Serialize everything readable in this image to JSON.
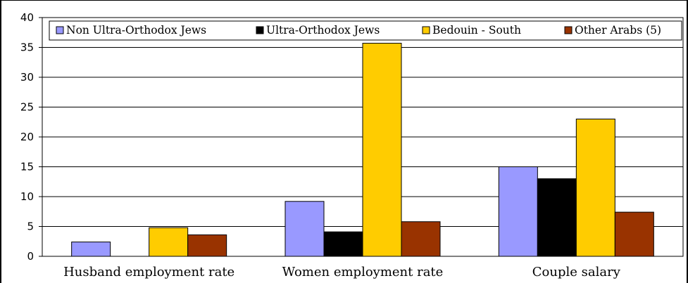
{
  "chart_data": {
    "type": "bar",
    "categories": [
      "Husband employment rate",
      "Women employment rate",
      "Couple salary"
    ],
    "series": [
      {
        "name": "Non Ultra-Orthodox Jews",
        "values": [
          2.4,
          9.2,
          15.0
        ],
        "color": "#9999ff"
      },
      {
        "name": "Ultra-Orthodox Jews",
        "values": [
          0,
          4.1,
          13.0
        ],
        "color": "#000000"
      },
      {
        "name": "Bedouin - South",
        "values": [
          4.8,
          35.7,
          23.0
        ],
        "color": "#ffcc00"
      },
      {
        "name": "Other Arabs (5)",
        "values": [
          3.6,
          5.8,
          7.4
        ],
        "color": "#993300"
      }
    ],
    "ylim": [
      0,
      40
    ],
    "yticks": [
      0,
      5,
      10,
      15,
      20,
      25,
      30,
      35,
      40
    ],
    "grid": true,
    "legend_position": "top"
  }
}
